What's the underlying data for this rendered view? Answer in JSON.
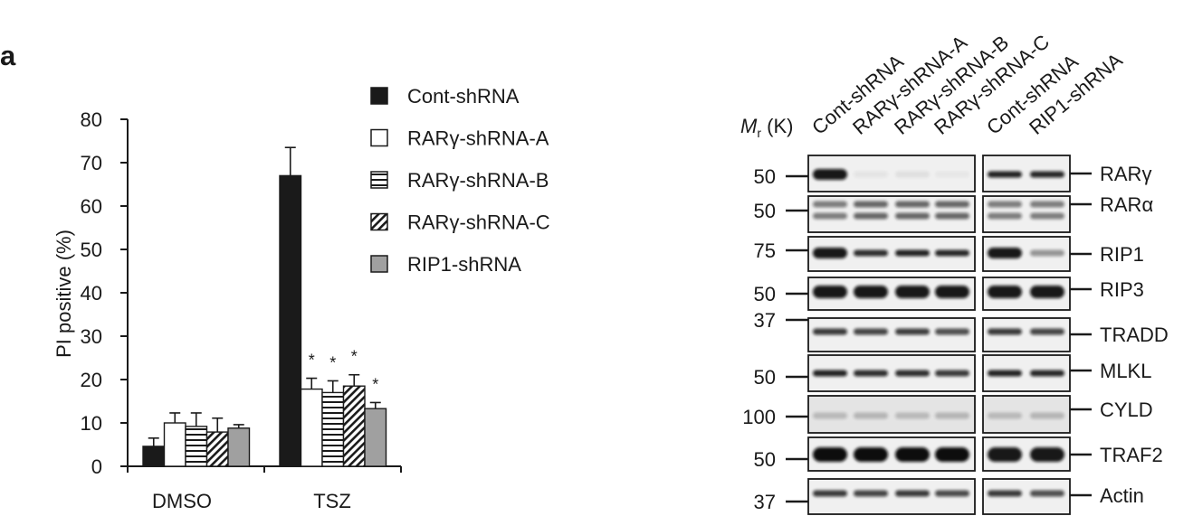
{
  "panel_label": "a",
  "chart_data": {
    "type": "bar",
    "title": "",
    "xlabel": "",
    "ylabel": "PI positive (%)",
    "ylim": [
      0,
      80
    ],
    "yticks": [
      "0",
      "10",
      "20",
      "30",
      "40",
      "50",
      "60",
      "70",
      "80"
    ],
    "categories": [
      "DMSO",
      "TSZ"
    ],
    "legend_placement": "top-right",
    "series": [
      {
        "name": "Cont-shRNA",
        "fill": "#1a1a1a",
        "pattern": "solid",
        "values": [
          4.6,
          67
        ],
        "error_top": [
          6.5,
          73.5
        ],
        "significance": [
          "",
          ""
        ]
      },
      {
        "name": "RARγ-shRNA-A",
        "fill": "#ffffff",
        "pattern": "solid",
        "values": [
          10,
          17.8
        ],
        "error_top": [
          12.3,
          20.3
        ],
        "significance": [
          "",
          "*"
        ]
      },
      {
        "name": "RARγ-shRNA-B",
        "fill": "#ffffff",
        "pattern": "horizontal-stripes",
        "values": [
          9.2,
          17
        ],
        "error_top": [
          12.3,
          19.7
        ],
        "significance": [
          "",
          "*"
        ]
      },
      {
        "name": "RARγ-shRNA-C",
        "fill": "#ffffff",
        "pattern": "diagonal-stripes",
        "values": [
          7.9,
          18.5
        ],
        "error_top": [
          11.1,
          21.1
        ],
        "significance": [
          "",
          "*"
        ]
      },
      {
        "name": "RIP1-shRNA",
        "fill": "#a0a0a0",
        "pattern": "solid",
        "values": [
          8.8,
          13.3
        ],
        "error_top": [
          9.6,
          14.7
        ],
        "significance": [
          "",
          "*"
        ]
      }
    ]
  },
  "blot": {
    "mr_label": "M",
    "mr_sub": "r",
    "mr_unit": " (K)",
    "lanes": [
      "Cont-shRNA",
      "RARγ-shRNA-A",
      "RARγ-shRNA-B",
      "RARγ-shRNA-C",
      "Cont-shRNA",
      "RIP1-shRNA"
    ],
    "rows": [
      {
        "protein": "RARγ",
        "marker": "50",
        "intensity": [
          0.95,
          0.05,
          0.07,
          0.04,
          0.9,
          0.88
        ]
      },
      {
        "protein": "RARα",
        "marker": "50",
        "intensity": [
          0.5,
          0.6,
          0.6,
          0.6,
          0.5,
          0.5
        ]
      },
      {
        "protein": "RIP1",
        "marker": "75",
        "intensity": [
          0.95,
          0.85,
          0.9,
          0.88,
          0.95,
          0.4
        ]
      },
      {
        "protein": "RIP3",
        "marker": "50",
        "intensity": [
          0.95,
          0.95,
          0.95,
          0.95,
          0.95,
          0.95
        ]
      },
      {
        "protein": "TRADD",
        "marker": "37",
        "intensity": [
          0.8,
          0.75,
          0.78,
          0.7,
          0.8,
          0.75
        ]
      },
      {
        "protein": "MLKL",
        "marker": "50",
        "intensity": [
          0.9,
          0.85,
          0.85,
          0.8,
          0.9,
          0.88
        ]
      },
      {
        "protein": "CYLD",
        "marker": "100",
        "intensity": [
          0.2,
          0.22,
          0.2,
          0.22,
          0.2,
          0.22
        ]
      },
      {
        "protein": "TRAF2",
        "marker": "50",
        "intensity": [
          1,
          1,
          1,
          1,
          0.95,
          0.95
        ]
      },
      {
        "protein": "Actin",
        "marker": "37",
        "intensity": [
          0.8,
          0.75,
          0.8,
          0.72,
          0.8,
          0.7
        ]
      }
    ]
  }
}
